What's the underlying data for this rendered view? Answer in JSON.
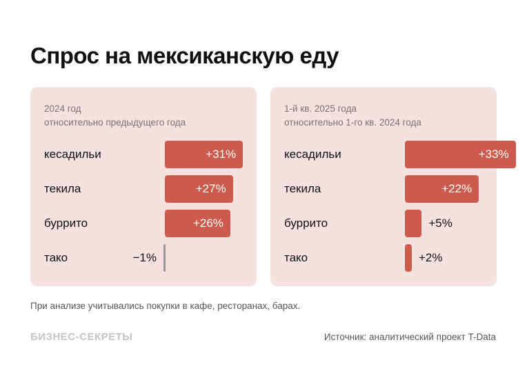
{
  "title": "Спрос на мексиканскую еду",
  "chart_data": [
    {
      "type": "bar",
      "orientation": "horizontal",
      "subtitle_line1": "2024 год",
      "subtitle_line2": "относительно предыдущего года",
      "categories": [
        "кесадильи",
        "текила",
        "буррито",
        "тако"
      ],
      "values": [
        31,
        27,
        26,
        -1
      ],
      "labels": [
        "+31%",
        "+27%",
        "+26%",
        "−1%"
      ],
      "unit": "%"
    },
    {
      "type": "bar",
      "orientation": "horizontal",
      "subtitle_line1": "1-й кв. 2025 года",
      "subtitle_line2": "относительно 1-го кв. 2024 года",
      "categories": [
        "кесадильи",
        "текила",
        "буррито",
        "тако"
      ],
      "values": [
        33,
        22,
        5,
        2
      ],
      "labels": [
        "+33%",
        "+22%",
        "+5%",
        "+2%"
      ],
      "unit": "%"
    }
  ],
  "colors": {
    "bar": "#cd5b4d",
    "negative": "#9a9a9a",
    "panel": "#f5e1df"
  },
  "footnote": "При анализе учитывались покупки в кафе, ресторанах, барах.",
  "logo": "БИЗНЕС-СЕКРЕТЫ",
  "source": "Источник: аналитический проект T-Data"
}
